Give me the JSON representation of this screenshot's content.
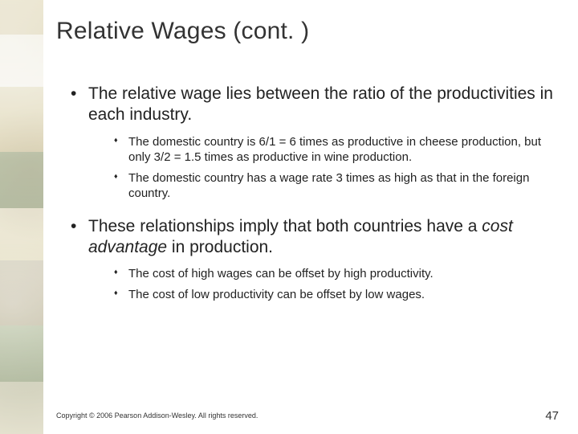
{
  "title": "Relative Wages (cont. )",
  "bullets": [
    {
      "text": "The relative wage lies between the ratio of the productivities in each industry.",
      "sub": [
        "The domestic country is 6/1 = 6 times as productive in cheese production, but only 3/2 = 1.5 times as productive in wine production.",
        "The domestic country has a wage rate 3 times as high as that in the foreign country."
      ]
    },
    {
      "text_pre": "These relationships imply that both countries have a ",
      "text_em": "cost advantage",
      "text_post": " in production.",
      "sub": [
        "The cost of high wages can be offset by high productivity.",
        "The cost of low productivity can be offset by low wages."
      ]
    }
  ],
  "footer": "Copyright © 2006 Pearson Addison-Wesley. All rights reserved.",
  "page_number": "47",
  "colors": {
    "text": "#222222",
    "title": "#333333",
    "background": "#ffffff"
  }
}
